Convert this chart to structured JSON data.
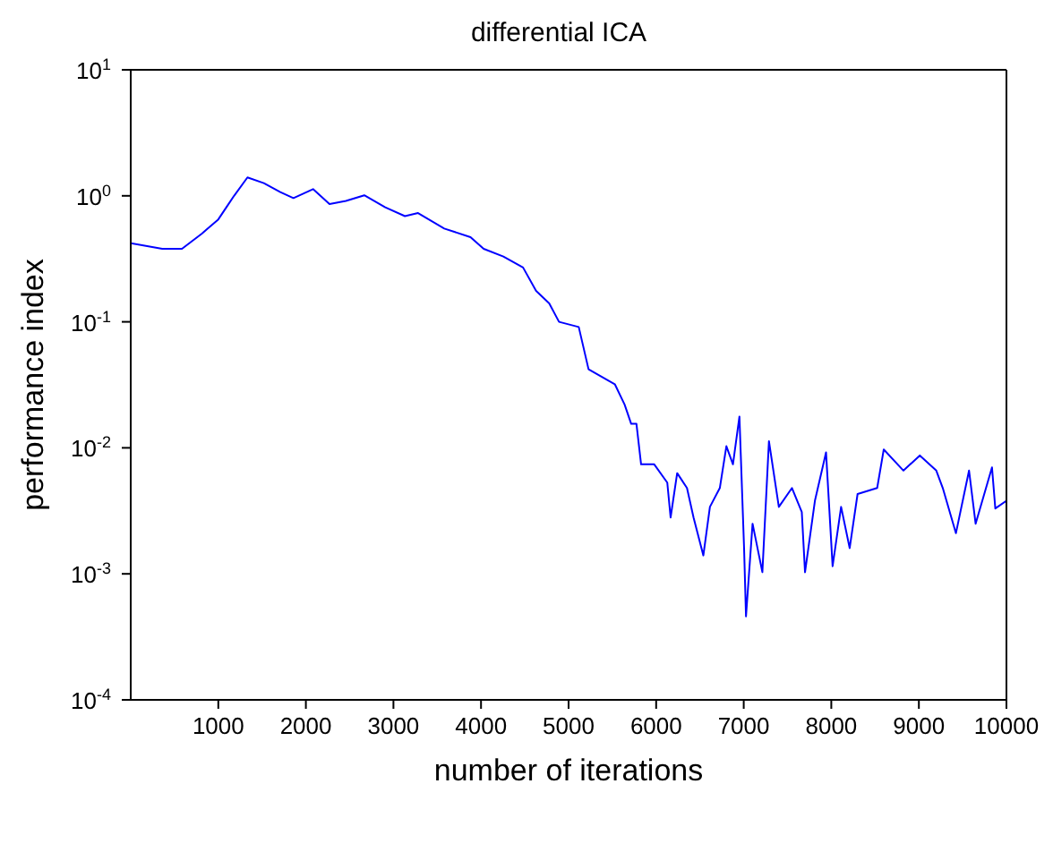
{
  "chart_data": {
    "type": "line",
    "title": "differential ICA",
    "xlabel": "number of iterations",
    "ylabel": "performance index",
    "log": "y",
    "xlim": [
      0,
      10000
    ],
    "xticks": [
      1000,
      2000,
      3000,
      4000,
      5000,
      6000,
      7000,
      8000,
      9000,
      10000
    ],
    "ylim": [
      0.0001,
      10
    ],
    "yticks": [
      {
        "value": 0.0001,
        "label": "10$^{-4}$"
      },
      {
        "value": 0.001,
        "label": "10$^{-3}$"
      },
      {
        "value": 0.01,
        "label": "10$^{-2}$"
      },
      {
        "value": 0.1,
        "label": "10$^{-1}$"
      },
      {
        "value": 1,
        "label": "10$^{0}$"
      },
      {
        "value": 10,
        "label": "10$^{1}$"
      }
    ],
    "grid": false,
    "legend": false,
    "marker": "none",
    "line_style": "solid",
    "x": [
      0,
      360,
      585,
      810,
      1000,
      1180,
      1333,
      1520,
      1708,
      1858,
      2082,
      2270,
      2457,
      2667,
      2906,
      3131,
      3281,
      3580,
      3880,
      4030,
      4255,
      4480,
      4629,
      4779,
      4891,
      5116,
      5228,
      5528,
      5640,
      5715,
      5775,
      5828,
      5978,
      6127,
      6165,
      6240,
      6352,
      6427,
      6539,
      6614,
      6727,
      6802,
      6877,
      6951,
      7004,
      7026,
      7101,
      7213,
      7288,
      7401,
      7551,
      7663,
      7700,
      7813,
      7940,
      8015,
      8112,
      8210,
      8300,
      8524,
      8599,
      8824,
      9011,
      9199,
      9273,
      9423,
      9573,
      9648,
      9835,
      9873,
      10000
    ],
    "series": [
      {
        "color": "#0000ff",
        "values": [
          0.42,
          0.38,
          0.38,
          0.5,
          0.65,
          1.0,
          1.4,
          1.26,
          1.07,
          0.96,
          1.13,
          0.86,
          0.91,
          1.01,
          0.81,
          0.69,
          0.73,
          0.55,
          0.47,
          0.38,
          0.33,
          0.27,
          0.176,
          0.14,
          0.1,
          0.091,
          0.042,
          0.032,
          0.022,
          0.0155,
          0.0155,
          0.0074,
          0.0074,
          0.0053,
          0.0028,
          0.0063,
          0.0048,
          0.0028,
          0.0014,
          0.0034,
          0.0048,
          0.0103,
          0.0074,
          0.0177,
          0.0016,
          0.00046,
          0.0025,
          0.00103,
          0.0113,
          0.0034,
          0.0048,
          0.0031,
          0.00103,
          0.0038,
          0.0092,
          0.00115,
          0.0034,
          0.0016,
          0.0043,
          0.0048,
          0.0097,
          0.0066,
          0.0087,
          0.0066,
          0.0048,
          0.0021,
          0.0066,
          0.0025,
          0.007,
          0.0033,
          0.0038
        ]
      }
    ]
  }
}
